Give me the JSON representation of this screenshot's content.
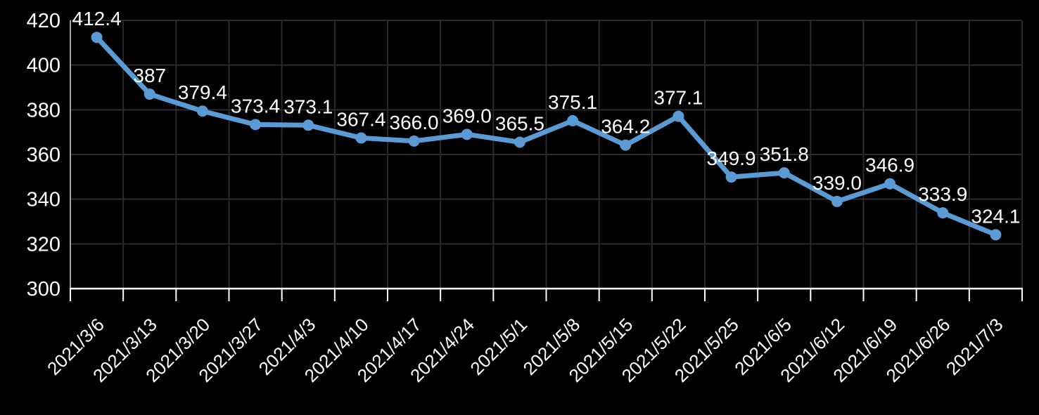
{
  "chart_data": {
    "type": "line",
    "title": "",
    "xlabel": "",
    "ylabel": "",
    "categories": [
      "2021/3/6",
      "2021/3/13",
      "2021/3/20",
      "2021/3/27",
      "2021/4/3",
      "2021/4/10",
      "2021/4/17",
      "2021/4/24",
      "2021/5/1",
      "2021/5/8",
      "2021/5/15",
      "2021/5/22",
      "2021/5/25",
      "2021/6/5",
      "2021/6/12",
      "2021/6/19",
      "2021/6/26",
      "2021/7/3"
    ],
    "values": [
      412.4,
      387,
      379.4,
      373.4,
      373.1,
      367.4,
      366.0,
      369.0,
      365.5,
      375.1,
      364.2,
      377.1,
      349.9,
      351.8,
      339.0,
      346.9,
      333.9,
      324.1
    ],
    "point_labels": [
      "412.4",
      "387",
      "379.4",
      "373.4",
      "373.1",
      "367.4",
      "366.0",
      "369.0",
      "365.5",
      "375.1",
      "364.2",
      "377.1",
      "349.9",
      "351.8",
      "339.0",
      "346.9",
      "333.9",
      "324.1"
    ],
    "ylim": [
      300,
      420
    ],
    "yticks": [
      420,
      400,
      380,
      360,
      340,
      320,
      300
    ],
    "grid": true,
    "legend": "none",
    "x_label_rotation_deg": 45,
    "colors": {
      "background": "#000000",
      "line": "#5B9BD5",
      "marker": "#5B9BD5",
      "text": "#FFFFFF",
      "gridline": "#2A2A2A",
      "axis_line": "#FFFFFF"
    }
  }
}
